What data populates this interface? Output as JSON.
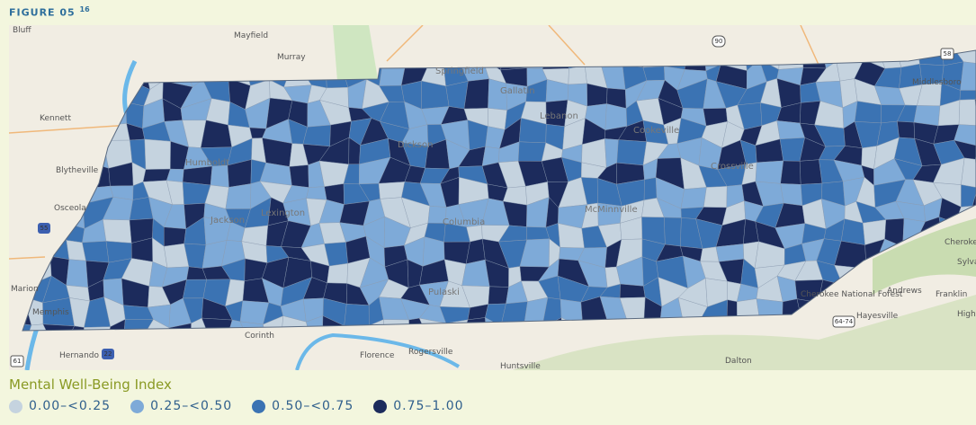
{
  "header": {
    "title": "FIGURE 05",
    "note": "16"
  },
  "map": {
    "places": [
      "Bluff",
      "Mayfield",
      "Murray",
      "Kennett",
      "Blytheville",
      "Osceola",
      "Marion",
      "Memphis",
      "Hernando",
      "Corinth",
      "Florence",
      "Rogersville",
      "Huntsville",
      "Dalton",
      "Middlesboro",
      "Cherokee",
      "Sylva",
      "Andrews",
      "Franklin",
      "Hayesville",
      "Highlands",
      "Cherokee National Forest",
      "Dickson",
      "Columbia",
      "McMinnville",
      "Pulaski",
      "Humboldt",
      "Jackson",
      "Lexington",
      "Springfield",
      "Gallatin",
      "Lebanon",
      "Cookeville",
      "Crossville"
    ],
    "shields": [
      "90",
      "58",
      "55",
      "22",
      "61",
      "64-74"
    ]
  },
  "legend": {
    "title": "Mental Well-Being Index",
    "items": [
      {
        "label": "0.00–<0.25",
        "color": "#c5d3df"
      },
      {
        "label": "0.25–<0.50",
        "color": "#7eaad8"
      },
      {
        "label": "0.50–<0.75",
        "color": "#3b73b3"
      },
      {
        "label": "0.75–1.00",
        "color": "#1c2b5c"
      }
    ]
  }
}
